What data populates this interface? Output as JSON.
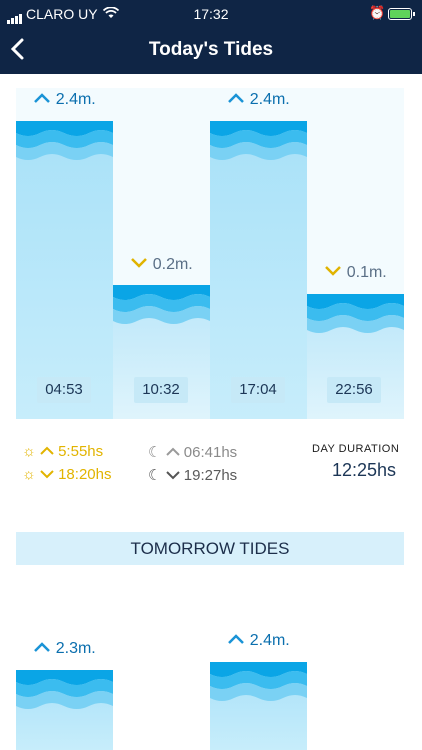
{
  "status": {
    "carrier": "CLARO UY",
    "time": "17:32"
  },
  "nav": {
    "title": "Today's Tides",
    "back_label": "‹"
  },
  "today": {
    "tides": [
      {
        "type": "high",
        "height": "2.4m.",
        "time": "04:53"
      },
      {
        "type": "low",
        "height": "0.2m.",
        "time": "10:32"
      },
      {
        "type": "high",
        "height": "2.4m.",
        "time": "17:04"
      },
      {
        "type": "low",
        "height": "0.1m.",
        "time": "22:56"
      }
    ]
  },
  "sun": {
    "rise": "5:55hs",
    "set": "18:20hs"
  },
  "moon": {
    "rise": "06:41hs",
    "set": "19:27hs"
  },
  "day_duration": {
    "label": "DAY DURATION",
    "value": "12:25hs"
  },
  "tomorrow": {
    "header": "TOMORROW TIDES",
    "tides": [
      {
        "type": "high",
        "height": "2.3m."
      },
      {
        "type": "high",
        "height": "2.4m."
      }
    ]
  },
  "colors": {
    "header": "#0f2545",
    "accent_high": "#1a93d6",
    "accent_low": "#e0b300",
    "wave_dark": "#0aa5e6"
  },
  "icons": [
    "back-chevron-icon",
    "wifi-icon",
    "alarm-icon",
    "battery-icon",
    "sun-icon",
    "moon-icon",
    "arrow-up-icon",
    "arrow-down-icon"
  ]
}
